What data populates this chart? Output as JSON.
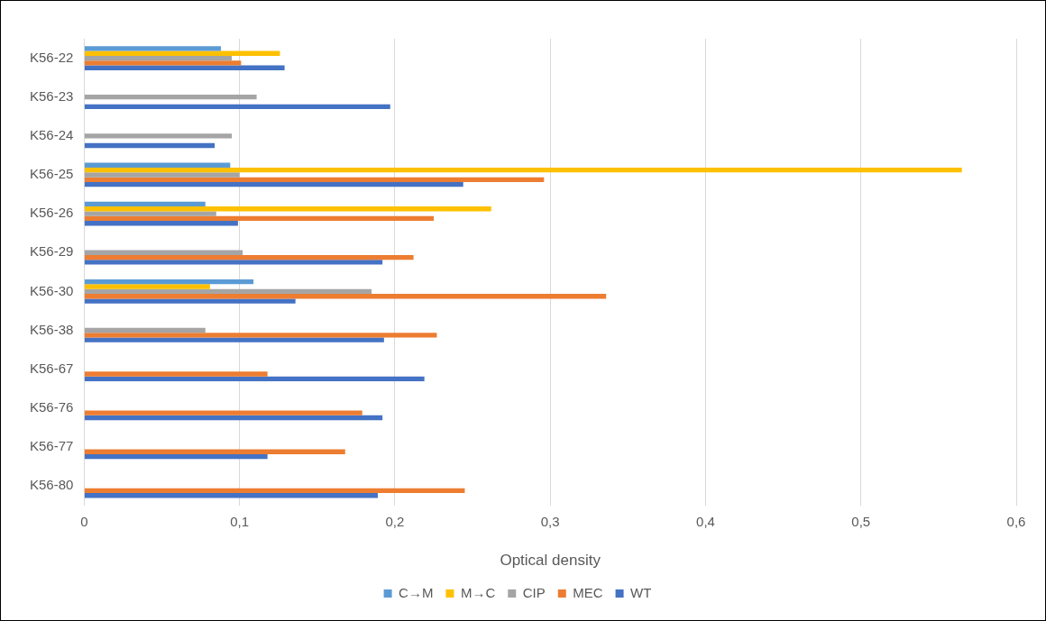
{
  "chart_data": {
    "type": "bar",
    "orientation": "horizontal",
    "xlabel": "Optical density",
    "categories": [
      "K56-22",
      "K56-23",
      "K56-24",
      "K56-25",
      "K56-26",
      "K56-29",
      "K56-30",
      "K56-38",
      "K56-67",
      "K56-76",
      "K56-77",
      "K56-80"
    ],
    "series": [
      {
        "name": "C→M",
        "color": "#5b9bd5",
        "values": [
          0.088,
          null,
          null,
          0.094,
          0.078,
          null,
          0.109,
          null,
          null,
          null,
          null,
          null
        ]
      },
      {
        "name": "M→C",
        "color": "#ffc000",
        "values": [
          0.126,
          null,
          null,
          0.565,
          0.262,
          null,
          0.081,
          null,
          null,
          null,
          null,
          null
        ]
      },
      {
        "name": "CIP",
        "color": "#a5a5a5",
        "values": [
          0.095,
          0.111,
          0.095,
          0.1,
          0.085,
          0.102,
          0.185,
          0.078,
          null,
          null,
          null,
          null
        ]
      },
      {
        "name": "MEC",
        "color": "#ed7d31",
        "values": [
          0.101,
          null,
          null,
          0.296,
          0.225,
          0.212,
          0.336,
          0.227,
          0.118,
          0.179,
          0.168,
          0.245
        ]
      },
      {
        "name": "WT",
        "color": "#4472c4",
        "values": [
          0.129,
          0.197,
          0.084,
          0.244,
          0.099,
          0.192,
          0.136,
          0.193,
          0.219,
          0.192,
          0.118,
          0.189
        ]
      }
    ],
    "xlim": [
      0,
      0.6
    ],
    "xticks": [
      0,
      {
        "value": 0.1,
        "label": "0,1"
      },
      {
        "value": 0.2,
        "label": "0,2"
      },
      {
        "value": 0.3,
        "label": "0,3"
      },
      {
        "value": 0.4,
        "label": "0,4"
      },
      {
        "value": 0.5,
        "label": "0,5"
      },
      {
        "value": 0.6,
        "label": "0,6"
      }
    ],
    "grid": "x",
    "legend": "bottom"
  }
}
